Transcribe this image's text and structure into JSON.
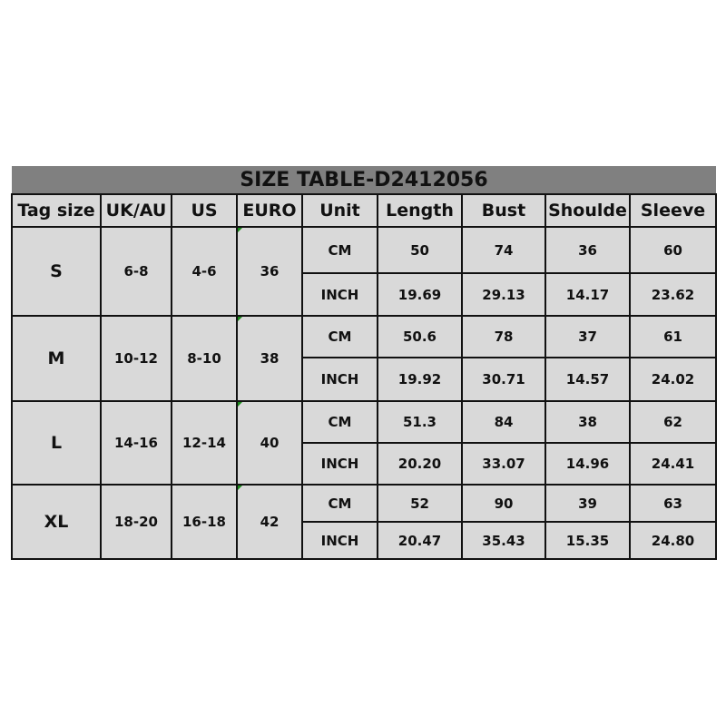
{
  "title": "SIZE TABLE-D2412056",
  "headers": [
    "Tag size",
    "UK/AU",
    "US",
    "EURO",
    "Unit",
    "Length",
    "Bust",
    "Shoulde",
    "Sleeve"
  ],
  "colors": {
    "title_bg": "#808080",
    "cell_bg": "#d9d9d9",
    "border": "#111111"
  },
  "rows": [
    {
      "tag": "S",
      "uk": "6-8",
      "us": "4-6",
      "euro": "36",
      "units": [
        {
          "unit": "CM",
          "length": "50",
          "bust": "74",
          "shoulder": "36",
          "sleeve": "60"
        },
        {
          "unit": "INCH",
          "length": "19.69",
          "bust": "29.13",
          "shoulder": "14.17",
          "sleeve": "23.62"
        }
      ]
    },
    {
      "tag": "M",
      "uk": "10-12",
      "us": "8-10",
      "euro": "38",
      "units": [
        {
          "unit": "CM",
          "length": "50.6",
          "bust": "78",
          "shoulder": "37",
          "sleeve": "61"
        },
        {
          "unit": "INCH",
          "length": "19.92",
          "bust": "30.71",
          "shoulder": "14.57",
          "sleeve": "24.02"
        }
      ]
    },
    {
      "tag": "L",
      "uk": "14-16",
      "us": "12-14",
      "euro": "40",
      "units": [
        {
          "unit": "CM",
          "length": "51.3",
          "bust": "84",
          "shoulder": "38",
          "sleeve": "62"
        },
        {
          "unit": "INCH",
          "length": "20.20",
          "bust": "33.07",
          "shoulder": "14.96",
          "sleeve": "24.41"
        }
      ]
    },
    {
      "tag": "XL",
      "uk": "18-20",
      "us": "16-18",
      "euro": "42",
      "units": [
        {
          "unit": "CM",
          "length": "52",
          "bust": "90",
          "shoulder": "39",
          "sleeve": "63"
        },
        {
          "unit": "INCH",
          "length": "20.47",
          "bust": "35.43",
          "shoulder": "15.35",
          "sleeve": "24.80"
        }
      ]
    }
  ]
}
